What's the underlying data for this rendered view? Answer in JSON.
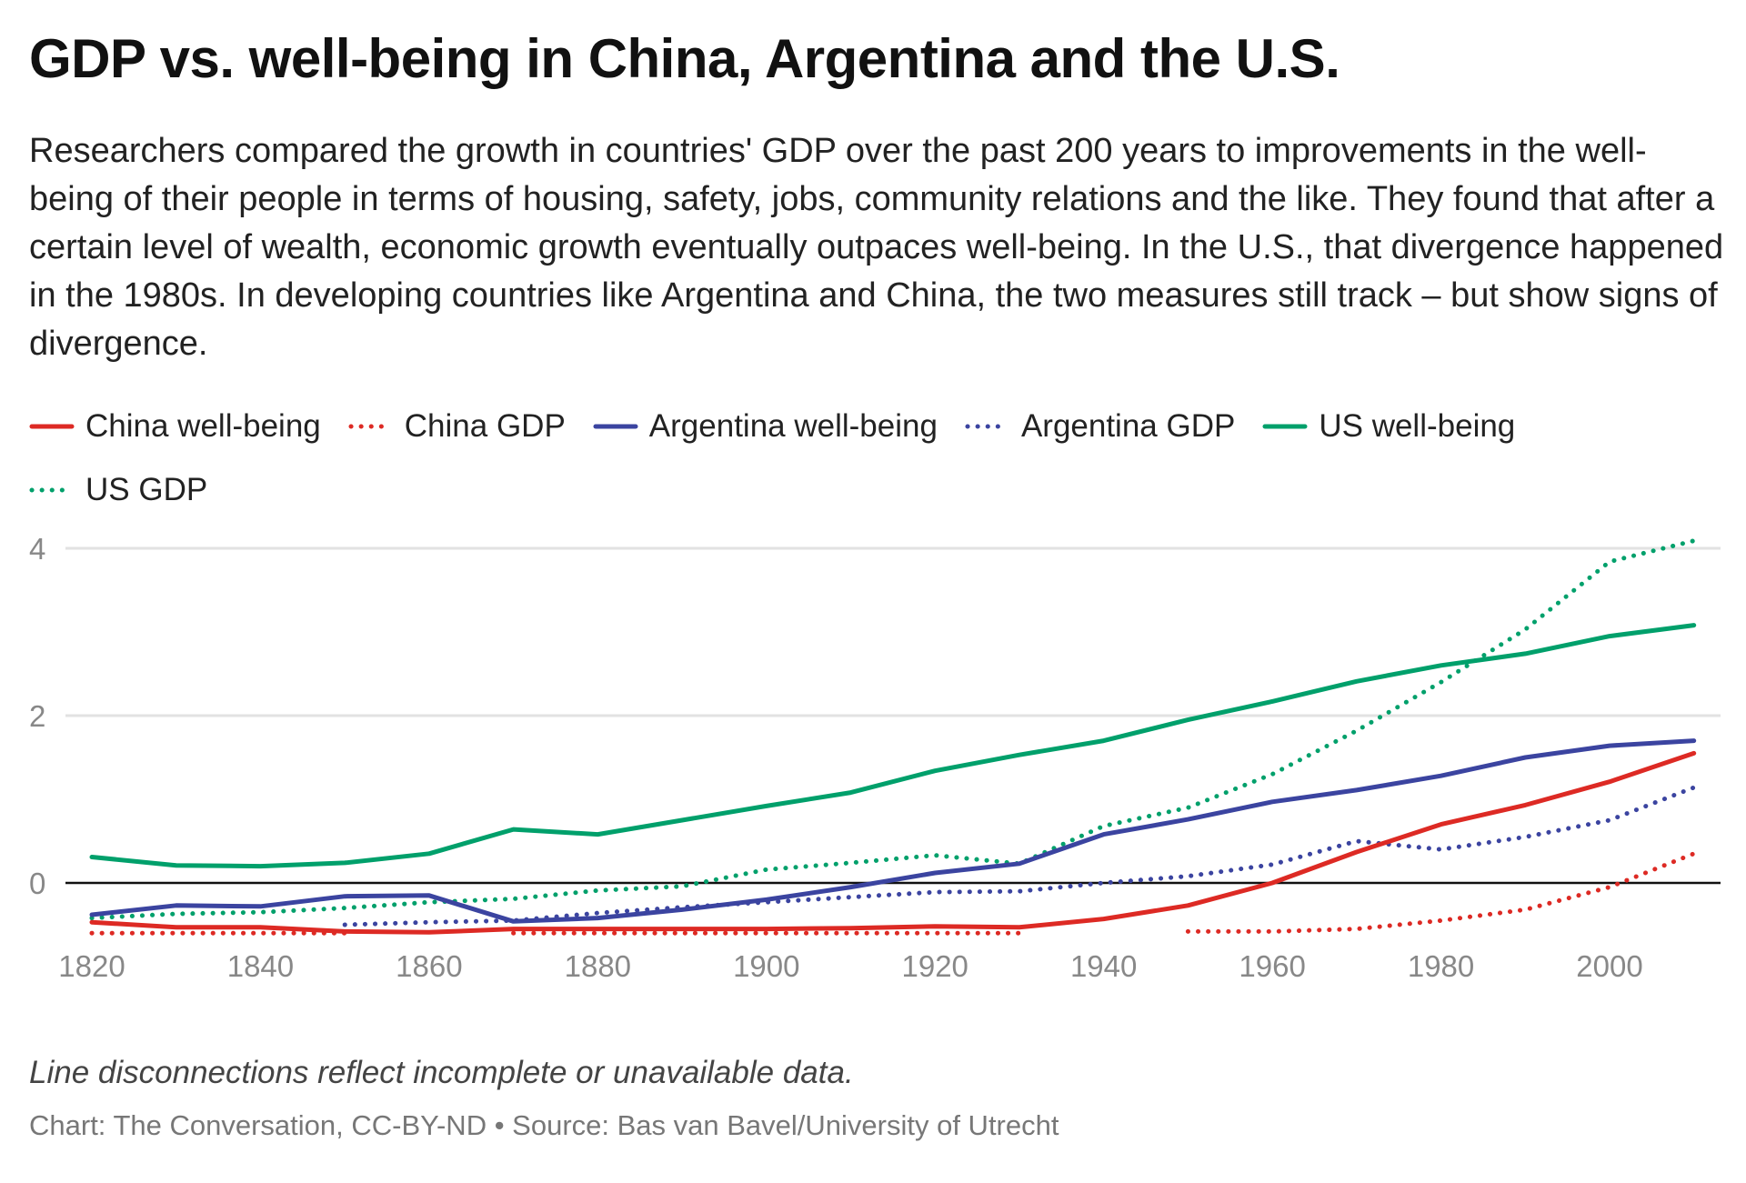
{
  "title": "GDP vs. well-being in China, Argentina and the U.S.",
  "description": "Researchers compared the growth in countries' GDP over the past 200 years to improvements in the well-being of their people in terms of housing, safety, jobs, community relations and the like. They found that after a certain level of wealth, economic growth eventually outpaces well-being. In the U.S., that divergence happened in the 1980s. In developing countries like Argentina and China, the two measures still track – but show signs of divergence.",
  "footnote": "Line disconnections reflect incomplete or unavailable data.",
  "source": "Chart: The Conversation, CC-BY-ND • Source: Bas van Bavel/University of Utrecht",
  "chart_data": {
    "type": "line",
    "title": "GDP vs. well-being in China, Argentina and the U.S.",
    "xlim": [
      1820,
      2010
    ],
    "ylim": [
      -0.8,
      4.2
    ],
    "x_ticks": [
      1820,
      1840,
      1860,
      1880,
      1900,
      1920,
      1940,
      1960,
      1980,
      2000
    ],
    "y_ticks": [
      0,
      2,
      4
    ],
    "grid": true,
    "legend_placement": "top",
    "x": [
      1820,
      1830,
      1840,
      1850,
      1860,
      1870,
      1880,
      1890,
      1900,
      1910,
      1920,
      1930,
      1940,
      1950,
      1960,
      1970,
      1980,
      1990,
      2000,
      2010
    ],
    "series": [
      {
        "name": "China well-being",
        "color": "#dd2a24",
        "style": "solid",
        "values": [
          -0.47,
          -0.53,
          -0.53,
          -0.58,
          -0.59,
          -0.55,
          -0.55,
          -0.55,
          -0.55,
          -0.54,
          -0.52,
          -0.53,
          -0.43,
          -0.27,
          0.0,
          0.37,
          0.7,
          0.93,
          1.21,
          1.55
        ]
      },
      {
        "name": "China GDP",
        "color": "#dd2a24",
        "style": "dotted",
        "values": [
          -0.6,
          -0.6,
          -0.6,
          -0.6,
          null,
          -0.6,
          -0.6,
          -0.6,
          -0.6,
          -0.6,
          -0.6,
          -0.6,
          null,
          -0.58,
          -0.58,
          -0.55,
          -0.45,
          -0.32,
          -0.05,
          0.35
        ]
      },
      {
        "name": "Argentina well-being",
        "color": "#3b44a0",
        "style": "solid",
        "values": [
          -0.38,
          -0.27,
          -0.28,
          -0.16,
          -0.15,
          -0.46,
          -0.42,
          -0.32,
          -0.2,
          -0.05,
          0.12,
          0.23,
          0.58,
          0.76,
          0.97,
          1.11,
          1.28,
          1.5,
          1.64,
          1.7
        ]
      },
      {
        "name": "Argentina GDP",
        "color": "#3b44a0",
        "style": "dotted",
        "values": [
          null,
          null,
          null,
          -0.5,
          -0.47,
          -0.45,
          -0.36,
          -0.29,
          -0.23,
          -0.17,
          -0.11,
          -0.1,
          0.0,
          0.08,
          0.22,
          0.5,
          0.4,
          0.55,
          0.75,
          1.14
        ]
      },
      {
        "name": "US well-being",
        "color": "#00a06b",
        "style": "solid",
        "values": [
          0.31,
          0.21,
          0.2,
          0.24,
          0.35,
          0.64,
          0.58,
          0.75,
          0.92,
          1.08,
          1.34,
          1.53,
          1.7,
          1.95,
          2.17,
          2.41,
          2.6,
          2.74,
          2.95,
          3.08
        ]
      },
      {
        "name": "US GDP",
        "color": "#00a06b",
        "style": "dotted",
        "values": [
          -0.42,
          -0.37,
          -0.35,
          -0.3,
          -0.23,
          -0.19,
          -0.09,
          -0.04,
          0.16,
          0.24,
          0.33,
          0.23,
          0.68,
          0.9,
          1.3,
          1.82,
          2.4,
          3.03,
          3.84,
          4.09
        ]
      }
    ]
  }
}
